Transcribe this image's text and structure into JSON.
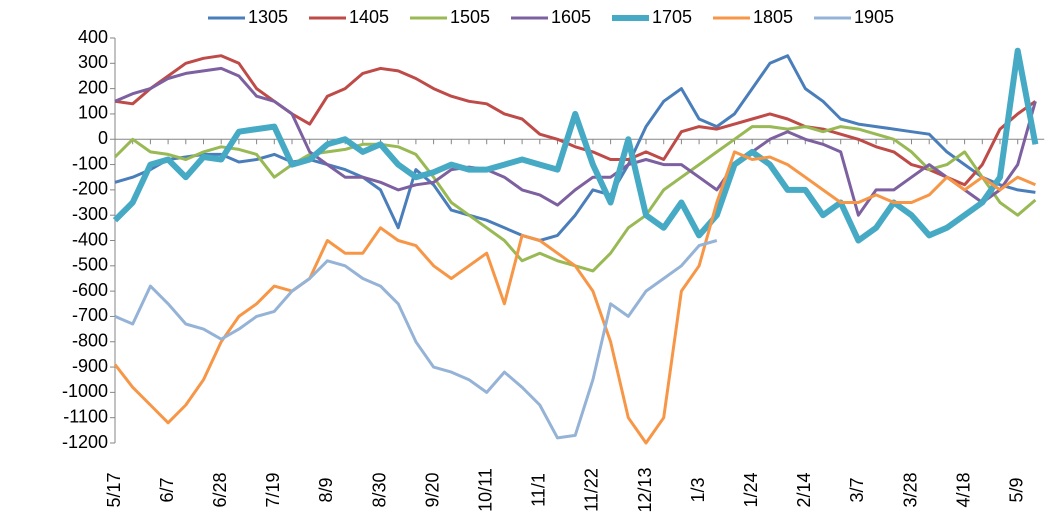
{
  "chart_data": {
    "type": "line",
    "categories": [
      "5/17",
      null,
      null,
      "6/7",
      null,
      null,
      "6/28",
      null,
      null,
      "7/19",
      null,
      null,
      "8/9",
      null,
      null,
      "8/30",
      null,
      null,
      "9/20",
      null,
      null,
      "10/11",
      null,
      null,
      "11/1",
      null,
      null,
      "11/22",
      null,
      null,
      "12/13",
      null,
      null,
      "1/3",
      null,
      null,
      "1/24",
      null,
      null,
      "2/14",
      null,
      null,
      "3/7",
      null,
      null,
      "3/28",
      null,
      null,
      "4/18",
      null,
      null,
      "5/9",
      null
    ],
    "ylim": [
      -1200,
      400
    ],
    "yticks": [
      -1200,
      -1100,
      -1000,
      -900,
      -800,
      -700,
      -600,
      -500,
      -400,
      -300,
      -200,
      -100,
      0,
      100,
      200,
      300,
      400
    ],
    "legend": "top",
    "series": [
      {
        "name": "1305",
        "color": "#4a7ebb",
        "line_width": 3,
        "values": [
          -170,
          -150,
          -120,
          -80,
          -70,
          -60,
          -60,
          -90,
          -80,
          -60,
          -90,
          -80,
          -100,
          -120,
          -150,
          -200,
          -350,
          -120,
          -180,
          -280,
          -300,
          -320,
          -350,
          -380,
          -400,
          -380,
          -300,
          -200,
          -220,
          -100,
          50,
          150,
          200,
          80,
          50,
          100,
          200,
          300,
          330,
          200,
          150,
          80,
          60,
          50,
          40,
          30,
          20,
          -50,
          -100,
          -150,
          -180,
          -200,
          -210
        ]
      },
      {
        "name": "1405",
        "color": "#be4b48",
        "line_width": 3,
        "values": [
          150,
          140,
          200,
          250,
          300,
          320,
          330,
          300,
          200,
          150,
          100,
          60,
          170,
          200,
          260,
          280,
          270,
          240,
          200,
          170,
          150,
          140,
          100,
          80,
          20,
          0,
          -30,
          -50,
          -80,
          -80,
          -50,
          -80,
          30,
          50,
          40,
          60,
          80,
          100,
          80,
          50,
          40,
          20,
          0,
          -30,
          -50,
          -100,
          -120,
          -150,
          -180,
          -100,
          40,
          100,
          150
        ]
      },
      {
        "name": "1505",
        "color": "#98b954",
        "line_width": 3,
        "values": [
          -70,
          0,
          -50,
          -60,
          -80,
          -50,
          -30,
          -40,
          -60,
          -150,
          -100,
          -60,
          -50,
          -40,
          -20,
          -20,
          -30,
          -60,
          -150,
          -250,
          -300,
          -350,
          -400,
          -480,
          -450,
          -480,
          -500,
          -520,
          -450,
          -350,
          -300,
          -200,
          -150,
          -100,
          -50,
          0,
          50,
          50,
          40,
          50,
          30,
          50,
          40,
          20,
          0,
          -50,
          -120,
          -100,
          -50,
          -150,
          -250,
          -300,
          -240
        ]
      },
      {
        "name": "1605",
        "color": "#7d60a0",
        "line_width": 3,
        "values": [
          150,
          180,
          200,
          240,
          260,
          270,
          280,
          250,
          170,
          150,
          100,
          -50,
          -100,
          -150,
          -150,
          -170,
          -200,
          -180,
          -170,
          -120,
          -110,
          -120,
          -150,
          -200,
          -220,
          -260,
          -200,
          -150,
          -150,
          -100,
          -80,
          -100,
          -100,
          -150,
          -200,
          -100,
          -50,
          0,
          30,
          0,
          -20,
          -50,
          -300,
          -200,
          -200,
          -150,
          -100,
          -150,
          -200,
          -250,
          -200,
          -100,
          150
        ]
      },
      {
        "name": "1705",
        "color": "#46aac5",
        "line_width": 6,
        "values": [
          -320,
          -250,
          -100,
          -80,
          -150,
          -70,
          -80,
          30,
          40,
          50,
          -100,
          -80,
          -20,
          0,
          -50,
          -20,
          -100,
          -150,
          -130,
          -100,
          -120,
          -120,
          -100,
          -80,
          -100,
          -120,
          100,
          -100,
          -250,
          0,
          -300,
          -350,
          -250,
          -380,
          -300,
          -100,
          -50,
          -100,
          -200,
          -200,
          -300,
          -250,
          -400,
          -350,
          -250,
          -300,
          -380,
          -350,
          -300,
          -250,
          -150,
          350,
          -20
        ]
      },
      {
        "name": "1805",
        "color": "#f79646",
        "line_width": 3,
        "values": [
          -890,
          -980,
          -1050,
          -1120,
          -1050,
          -950,
          -800,
          -700,
          -650,
          -580,
          -600,
          -550,
          -400,
          -450,
          -450,
          -350,
          -400,
          -420,
          -500,
          -550,
          -500,
          -450,
          -650,
          -380,
          -400,
          -450,
          -500,
          -600,
          -800,
          -1100,
          -1200,
          -1100,
          -600,
          -500,
          -250,
          -50,
          -80,
          -70,
          -100,
          -150,
          -200,
          -250,
          -250,
          -220,
          -250,
          -250,
          -220,
          -150,
          -200,
          -150,
          -200,
          -150,
          -180
        ]
      },
      {
        "name": "1905",
        "color": "#95b3d7",
        "line_width": 3,
        "values": [
          -700,
          -730,
          -580,
          -650,
          -730,
          -750,
          -790,
          -750,
          -700,
          -680,
          -600,
          -550,
          -480,
          -500,
          -550,
          -580,
          -650,
          -800,
          -900,
          -920,
          -950,
          -1000,
          -920,
          -980,
          -1050,
          -1180,
          -1170,
          -950,
          -650,
          -700,
          -600,
          -550,
          -500,
          -420,
          -400,
          null,
          null,
          null,
          null,
          null,
          null,
          null,
          null,
          null,
          null,
          null,
          null,
          null,
          null,
          null,
          null,
          null,
          null
        ]
      }
    ]
  }
}
